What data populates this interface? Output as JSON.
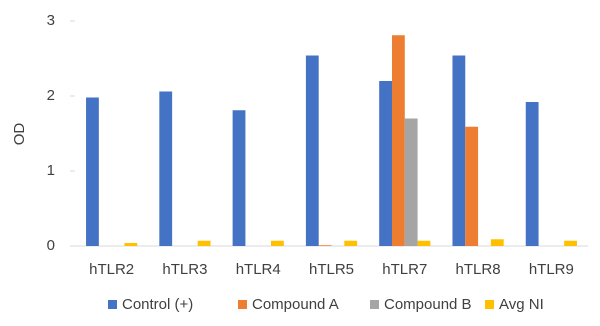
{
  "chart_data": {
    "type": "bar",
    "y_label": "OD",
    "categories": [
      "hTLR2",
      "hTLR3",
      "hTLR4",
      "hTLR5",
      "hTLR7",
      "hTLR8",
      "hTLR9"
    ],
    "series": [
      {
        "name": "Control (+)",
        "color": "#4472c4",
        "values": [
          1.98,
          2.06,
          1.81,
          2.54,
          2.2,
          2.54,
          1.92
        ]
      },
      {
        "name": "Compound A",
        "color": "#ed7d31",
        "values": [
          0,
          0,
          0,
          0.01,
          2.81,
          1.59,
          0
        ]
      },
      {
        "name": "Compound B",
        "color": "#a5a5a5",
        "values": [
          0,
          0,
          0,
          0,
          1.7,
          0,
          0
        ]
      },
      {
        "name": "Avg NI",
        "color": "#ffc000",
        "values": [
          0.04,
          0.07,
          0.07,
          0.07,
          0.07,
          0.09,
          0.07
        ]
      }
    ],
    "ylim": [
      0,
      3
    ],
    "yticks": [
      0,
      1,
      2,
      3
    ],
    "legend": "bottom"
  }
}
